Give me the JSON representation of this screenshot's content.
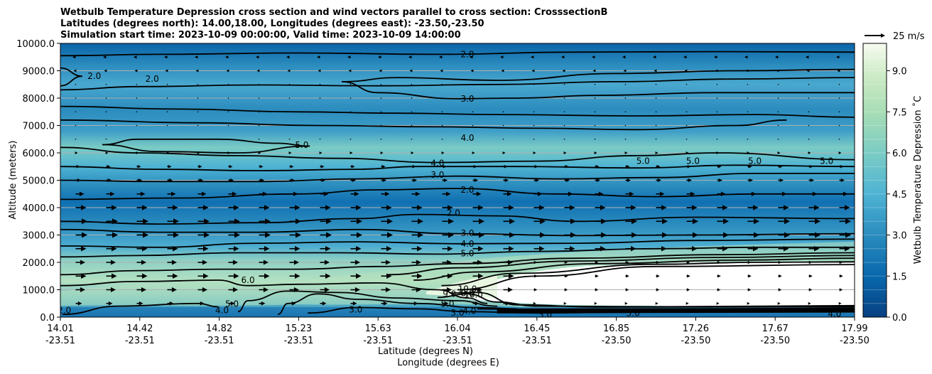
{
  "chart_data": {
    "type": "contourf",
    "title_lines": [
      "Wetbulb Temperature Depression cross section and wind vectors parallel to cross section: CrosssectionB",
      "Latitudes (degrees north): 14.00,18.00, Longitudes (degrees east): -23.50,-23.50",
      "Simulation start time: 2023-10-09 00:00:00, Valid time: 2023-10-09 14:00:00"
    ],
    "ylabel": "Altitude (meters)",
    "xlabel_lat": "Latitude (degrees N)",
    "xlabel_lon": "Longitude (degrees E)",
    "ylim": [
      0,
      10000
    ],
    "y_ticks": [
      "0.0",
      "1000.0",
      "2000.0",
      "3000.0",
      "4000.0",
      "5000.0",
      "6000.0",
      "7000.0",
      "8000.0",
      "9000.0",
      "10000.0"
    ],
    "y_tick_values": [
      0,
      1000,
      2000,
      3000,
      4000,
      5000,
      6000,
      7000,
      8000,
      9000,
      10000
    ],
    "x_ticks_lat": [
      "14.01",
      "14.42",
      "14.82",
      "15.23",
      "15.63",
      "16.04",
      "16.45",
      "16.85",
      "17.26",
      "17.67",
      "17.99"
    ],
    "x_ticks_lon": [
      "-23.51",
      "-23.51",
      "-23.51",
      "-23.51",
      "-23.51",
      "-23.51",
      "-23.51",
      "-23.50",
      "-23.50",
      "-23.50",
      "-23.50"
    ],
    "colorbar": {
      "label": "Wetbulb Temperature Depression ˚C",
      "range": [
        0,
        10
      ],
      "ticks": [
        "0.0",
        "1.5",
        "3.0",
        "4.5",
        "6.0",
        "7.5",
        "9.0"
      ],
      "tick_values": [
        0,
        1.5,
        3,
        4.5,
        6,
        7.5,
        9
      ],
      "levels": 20
    },
    "quiver_key": {
      "label": "25 m/s",
      "speed": 25
    },
    "contour_labels": [
      {
        "text": "2.0",
        "lat": 16.05,
        "alt": 9600
      },
      {
        "text": "2.0",
        "lat": 14.18,
        "alt": 8800
      },
      {
        "text": "2.0",
        "lat": 14.47,
        "alt": 8700
      },
      {
        "text": "3.0",
        "lat": 16.05,
        "alt": 7970
      },
      {
        "text": "4.0",
        "lat": 16.05,
        "alt": 6550
      },
      {
        "text": "5.0",
        "lat": 15.22,
        "alt": 6280
      },
      {
        "text": "4.0",
        "lat": 15.9,
        "alt": 5620
      },
      {
        "text": "3.0",
        "lat": 15.9,
        "alt": 5200
      },
      {
        "text": "2.0",
        "lat": 16.05,
        "alt": 4650
      },
      {
        "text": "5.0",
        "lat": 16.93,
        "alt": 5700
      },
      {
        "text": "5.0",
        "lat": 17.18,
        "alt": 5700
      },
      {
        "text": "5.0",
        "lat": 17.49,
        "alt": 5700
      },
      {
        "text": "5.0",
        "lat": 17.85,
        "alt": 5700
      },
      {
        "text": "2.0",
        "lat": 15.98,
        "alt": 3800
      },
      {
        "text": "3.0",
        "lat": 16.05,
        "alt": 3070
      },
      {
        "text": "4.0",
        "lat": 16.05,
        "alt": 2680
      },
      {
        "text": "5.0",
        "lat": 16.05,
        "alt": 2330
      },
      {
        "text": "6.0",
        "lat": 14.95,
        "alt": 1350
      },
      {
        "text": "10.0",
        "lat": 16.05,
        "alt": 1030
      },
      {
        "text": "10.0",
        "lat": 16.08,
        "alt": 820
      },
      {
        "text": "9.0",
        "lat": 15.96,
        "alt": 850
      },
      {
        "text": "8.0",
        "lat": 16.05,
        "alt": 870
      },
      {
        "text": "5.0",
        "lat": 14.87,
        "alt": 480
      },
      {
        "text": "4.0",
        "lat": 14.82,
        "alt": 250
      },
      {
        "text": "3.0",
        "lat": 15.49,
        "alt": 270
      },
      {
        "text": "5.0",
        "lat": 15.95,
        "alt": 480
      },
      {
        "text": "4.0",
        "lat": 16.06,
        "alt": 220
      },
      {
        "text": "3.0",
        "lat": 16.0,
        "alt": 150
      },
      {
        "text": "3.0",
        "lat": 16.44,
        "alt": 90
      },
      {
        "text": "3.0",
        "lat": 16.88,
        "alt": 140
      },
      {
        "text": "4.0",
        "lat": 17.89,
        "alt": 120
      },
      {
        "text": "2.0",
        "lat": 14.03,
        "alt": 250
      }
    ],
    "contours": [
      {
        "level": 2,
        "points": [
          [
            14.01,
            9550
          ],
          [
            14.5,
            9600
          ],
          [
            15.2,
            9650
          ],
          [
            15.9,
            9600
          ],
          [
            16.6,
            9680
          ],
          [
            17.3,
            9700
          ],
          [
            17.99,
            9680
          ]
        ]
      },
      {
        "level": 2,
        "points": [
          [
            14.01,
            9100
          ],
          [
            14.12,
            8800
          ],
          [
            14.01,
            8450
          ]
        ]
      },
      {
        "level": 2,
        "points": [
          [
            14.01,
            8300
          ],
          [
            14.4,
            8420
          ],
          [
            15.0,
            8480
          ],
          [
            15.6,
            8450
          ],
          [
            16.2,
            8500
          ],
          [
            16.8,
            8600
          ],
          [
            17.4,
            8700
          ],
          [
            17.99,
            8750
          ]
        ]
      },
      {
        "level": 3,
        "points": [
          [
            15.42,
            8600
          ],
          [
            15.7,
            8750
          ],
          [
            16.2,
            8650
          ],
          [
            16.8,
            8900
          ],
          [
            17.4,
            9000
          ],
          [
            17.99,
            9050
          ]
        ]
      },
      {
        "level": 3,
        "points": [
          [
            15.42,
            8600
          ],
          [
            15.6,
            8200
          ],
          [
            16.0,
            7980
          ],
          [
            16.3,
            8000
          ],
          [
            16.7,
            8100
          ],
          [
            17.3,
            8200
          ],
          [
            17.99,
            8200
          ]
        ]
      },
      {
        "level": 3,
        "points": [
          [
            14.01,
            7700
          ],
          [
            14.6,
            7600
          ],
          [
            15.2,
            7500
          ],
          [
            15.7,
            7450
          ],
          [
            16.2,
            7400
          ],
          [
            16.9,
            7350
          ],
          [
            17.5,
            7400
          ],
          [
            17.99,
            7300
          ]
        ]
      },
      {
        "level": 3,
        "points": [
          [
            14.01,
            7200
          ],
          [
            14.7,
            7100
          ],
          [
            15.3,
            7000
          ],
          [
            15.9,
            6950
          ],
          [
            16.4,
            6900
          ],
          [
            16.9,
            6850
          ],
          [
            17.4,
            7000
          ],
          [
            17.65,
            7200
          ]
        ]
      },
      {
        "level": 4,
        "points": [
          [
            14.01,
            6200
          ],
          [
            14.4,
            6000
          ],
          [
            14.9,
            5900
          ],
          [
            15.4,
            5800
          ],
          [
            15.9,
            5650
          ],
          [
            16.4,
            5700
          ],
          [
            16.9,
            5900
          ],
          [
            17.3,
            6000
          ],
          [
            17.99,
            5750
          ]
        ]
      },
      {
        "level": 5,
        "points": [
          [
            14.22,
            6300
          ],
          [
            14.4,
            6500
          ],
          [
            14.8,
            6500
          ],
          [
            15.1,
            6350
          ],
          [
            15.26,
            6250
          ]
        ]
      },
      {
        "level": 5,
        "points": [
          [
            14.22,
            6300
          ],
          [
            14.5,
            6050
          ],
          [
            14.9,
            6000
          ],
          [
            15.26,
            6250
          ]
        ]
      },
      {
        "level": 4,
        "points": [
          [
            14.01,
            5500
          ],
          [
            14.5,
            5400
          ],
          [
            15.0,
            5350
          ],
          [
            15.5,
            5400
          ],
          [
            15.8,
            5500
          ],
          [
            16.3,
            5500
          ],
          [
            16.9,
            5450
          ],
          [
            17.4,
            5550
          ],
          [
            17.99,
            5500
          ]
        ]
      },
      {
        "level": 3,
        "points": [
          [
            14.01,
            5000
          ],
          [
            14.5,
            4950
          ],
          [
            15.0,
            4950
          ],
          [
            15.5,
            5050
          ],
          [
            16.0,
            5150
          ],
          [
            16.5,
            5050
          ],
          [
            17.0,
            5100
          ],
          [
            17.5,
            5250
          ],
          [
            17.99,
            5250
          ]
        ]
      },
      {
        "level": 2,
        "points": [
          [
            14.01,
            4300
          ],
          [
            14.6,
            4350
          ],
          [
            15.2,
            4500
          ],
          [
            15.6,
            4650
          ],
          [
            16.0,
            4700
          ],
          [
            16.5,
            4500
          ],
          [
            17.0,
            4400
          ],
          [
            17.5,
            4500
          ],
          [
            17.99,
            4500
          ]
        ]
      },
      {
        "level": 2,
        "points": [
          [
            14.01,
            3500
          ],
          [
            14.5,
            3400
          ],
          [
            15.0,
            3450
          ],
          [
            15.5,
            3600
          ],
          [
            15.8,
            3750
          ],
          [
            16.2,
            3700
          ],
          [
            16.6,
            3500
          ],
          [
            17.2,
            3650
          ],
          [
            17.99,
            3600
          ]
        ]
      },
      {
        "level": 3,
        "points": [
          [
            14.01,
            3200
          ],
          [
            14.5,
            3100
          ],
          [
            15.0,
            3100
          ],
          [
            15.5,
            3200
          ],
          [
            16.0,
            3050
          ],
          [
            16.6,
            2980
          ],
          [
            17.2,
            3000
          ],
          [
            17.99,
            3050
          ]
        ]
      },
      {
        "level": 4,
        "points": [
          [
            14.01,
            2600
          ],
          [
            14.5,
            2550
          ],
          [
            15.0,
            2700
          ],
          [
            15.5,
            2750
          ],
          [
            16.0,
            2680
          ],
          [
            16.6,
            2700
          ],
          [
            17.2,
            2800
          ],
          [
            17.99,
            2850
          ]
        ]
      },
      {
        "level": 5,
        "points": [
          [
            14.01,
            2200
          ],
          [
            14.4,
            2250
          ],
          [
            14.9,
            2350
          ],
          [
            15.4,
            2350
          ],
          [
            15.9,
            2300
          ],
          [
            16.4,
            2400
          ],
          [
            17.0,
            2500
          ],
          [
            17.5,
            2550
          ],
          [
            17.99,
            2550
          ]
        ]
      },
      {
        "level": 6,
        "points": [
          [
            14.01,
            1550
          ],
          [
            14.4,
            1700
          ],
          [
            14.8,
            1750
          ],
          [
            15.2,
            1750
          ],
          [
            15.6,
            1850
          ],
          [
            16.0,
            1950
          ],
          [
            16.6,
            2150
          ],
          [
            17.3,
            2280
          ],
          [
            17.99,
            2350
          ]
        ]
      },
      {
        "level": 7,
        "points": [
          [
            15.65,
            1550
          ],
          [
            16.0,
            1800
          ],
          [
            16.6,
            2050
          ],
          [
            17.3,
            2180
          ],
          [
            17.99,
            2250
          ]
        ]
      },
      {
        "level": 8,
        "points": [
          [
            15.78,
            1350
          ],
          [
            16.1,
            1650
          ],
          [
            16.7,
            1950
          ],
          [
            17.4,
            2080
          ],
          [
            17.99,
            2150
          ]
        ]
      },
      {
        "level": 9,
        "points": [
          [
            15.92,
            1150
          ],
          [
            16.3,
            1600
          ],
          [
            17.0,
            1930
          ],
          [
            17.5,
            2000
          ],
          [
            17.99,
            2020
          ]
        ]
      },
      {
        "level": 10,
        "points": [
          [
            16.0,
            1000
          ],
          [
            16.4,
            1500
          ],
          [
            17.0,
            1850
          ],
          [
            17.99,
            1920
          ]
        ]
      },
      {
        "level": 6,
        "points": [
          [
            14.01,
            1150
          ],
          [
            14.4,
            1300
          ],
          [
            14.8,
            1350
          ],
          [
            14.95,
            1150
          ],
          [
            15.2,
            1200
          ],
          [
            15.6,
            1250
          ],
          [
            15.9,
            1000
          ],
          [
            16.05,
            700
          ],
          [
            16.15,
            500
          ]
        ]
      },
      {
        "level": 5,
        "points": [
          [
            14.9,
            200
          ],
          [
            14.95,
            600
          ],
          [
            15.15,
            950
          ],
          [
            15.4,
            900
          ],
          [
            15.7,
            700
          ],
          [
            16.0,
            600
          ],
          [
            16.2,
            400
          ]
        ]
      },
      {
        "level": 4,
        "points": [
          [
            15.1,
            100
          ],
          [
            15.15,
            500
          ],
          [
            15.3,
            850
          ],
          [
            15.5,
            650
          ],
          [
            15.8,
            500
          ],
          [
            16.1,
            350
          ],
          [
            16.3,
            300
          ]
        ]
      },
      {
        "level": 3,
        "points": [
          [
            14.02,
            100
          ],
          [
            14.3,
            400
          ],
          [
            14.7,
            500
          ],
          [
            14.8,
            380
          ]
        ]
      },
      {
        "level": 3,
        "points": [
          [
            15.25,
            150
          ],
          [
            15.5,
            350
          ],
          [
            15.8,
            300
          ],
          [
            16.05,
            200
          ],
          [
            16.4,
            150
          ],
          [
            16.9,
            180
          ],
          [
            17.5,
            230
          ],
          [
            17.99,
            300
          ]
        ]
      },
      {
        "level": 4,
        "points": [
          [
            16.1,
            300
          ],
          [
            16.5,
            230
          ],
          [
            17.0,
            260
          ],
          [
            17.5,
            300
          ],
          [
            17.99,
            330
          ]
        ]
      },
      {
        "level": 8,
        "points": [
          [
            15.9,
            720
          ],
          [
            16.05,
            850
          ],
          [
            16.2,
            550
          ],
          [
            16.4,
            400
          ],
          [
            17.0,
            380
          ],
          [
            17.99,
            420
          ]
        ]
      },
      {
        "level": 9,
        "points": [
          [
            15.96,
            880
          ],
          [
            16.1,
            900
          ],
          [
            16.3,
            450
          ],
          [
            16.7,
            370
          ],
          [
            17.99,
            380
          ]
        ]
      }
    ],
    "wind_rows_altitude": [
      500,
      1000,
      1500,
      2000,
      2500,
      3000,
      3500,
      4000,
      4500,
      5000,
      5500,
      6000,
      6500,
      7000,
      7500,
      8000,
      8500,
      9000,
      9500
    ],
    "wind_u_ms": [
      6,
      9,
      10,
      9,
      10,
      11,
      11,
      10,
      8,
      5,
      4,
      2,
      1,
      1,
      0,
      0,
      -1,
      -2,
      -3
    ]
  }
}
